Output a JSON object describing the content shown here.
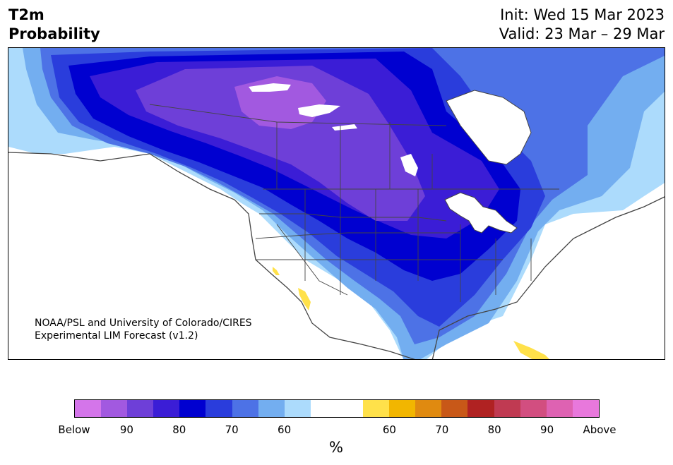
{
  "title": {
    "left_line1": "T2m",
    "left_line2": "Probability",
    "right_line1": "Init: Wed 15 Mar 2023",
    "right_line2": "Valid: 23 Mar – 29 Mar"
  },
  "credit": {
    "line1": "NOAA/PSL and University of Colorado/CIRES",
    "line2": "Experimental LIM Forecast (v1.2)"
  },
  "colorbar": {
    "colors": [
      "#d475ea",
      "#a259e0",
      "#6e3fd8",
      "#3b1dd6",
      "#0000d0",
      "#2a3ddc",
      "#4d72e6",
      "#73aef0",
      "#acdbfc",
      "#ffffff",
      "#ffffff",
      "#ffe14a",
      "#f2b600",
      "#e08a10",
      "#c85818",
      "#b02222",
      "#c03a52",
      "#d24e80",
      "#de62b2",
      "#e878dc"
    ],
    "labels": [
      "Below",
      "90",
      "80",
      "70",
      "60",
      "60",
      "70",
      "80",
      "90",
      "Above"
    ],
    "unit": "%"
  },
  "map_colors": {
    "lightblue": "#acdbfc",
    "skyblue": "#73aef0",
    "medblue": "#4d72e6",
    "blue": "#2a3ddc",
    "deepblue": "#0000d0",
    "indigo": "#3b1dd6",
    "violet": "#6e3fd8",
    "lavender": "#a259e0",
    "yellow": "#ffe14a",
    "border": "#444444"
  }
}
